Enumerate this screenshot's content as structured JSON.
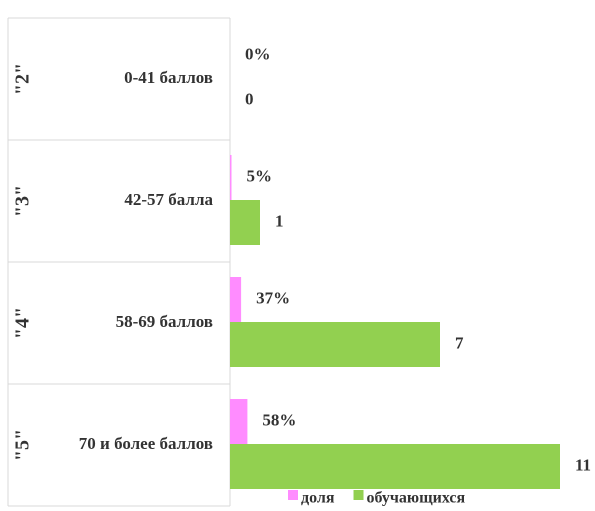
{
  "chart_data": {
    "type": "bar",
    "orientation": "horizontal",
    "groups": [
      "\"2\"",
      "\"3\"",
      "\"4\"",
      "\"5\""
    ],
    "categories": [
      "0-41 баллов",
      "42-57 балла",
      "58-69 баллов",
      "70 и более баллов"
    ],
    "series": [
      {
        "name": "доля",
        "color": "#ff8cff",
        "values": [
          0,
          0.05,
          0.37,
          0.58
        ],
        "value_labels": [
          "0%",
          "5%",
          "37%",
          "58%"
        ]
      },
      {
        "name": "обучающихся",
        "color": "#92d050",
        "values": [
          0,
          1,
          7,
          11
        ]
      }
    ],
    "xlim": [
      0,
      11.5
    ],
    "legend": "bottom"
  }
}
